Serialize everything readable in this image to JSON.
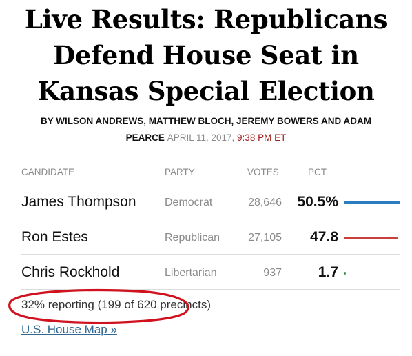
{
  "article": {
    "headline_line1": "Live Results: Republicans",
    "headline_line2": "Defend House Seat in",
    "headline_line3": "Kansas Special Election",
    "byline_authors_line1": "BY WILSON ANDREWS, MATTHEW BLOCH, JEREMY BOWERS AND ADAM",
    "byline_authors_line2": "PEARCE",
    "byline_date": "APRIL 11, 2017,",
    "byline_time": "9:38 PM ET"
  },
  "results_table": {
    "headers": {
      "candidate": "CANDIDATE",
      "party": "PARTY",
      "votes": "VOTES",
      "pct": "PCT."
    },
    "rows": [
      {
        "candidate": "James Thompson",
        "party": "Democrat",
        "votes": "28,646",
        "pct": "50.5%",
        "pct_value": 50.5
      },
      {
        "candidate": "Ron Estes",
        "party": "Republican",
        "votes": "27,105",
        "pct": "47.8",
        "pct_value": 47.8
      },
      {
        "candidate": "Chris Rockhold",
        "party": "Libertarian",
        "votes": "937",
        "pct": "1.7",
        "pct_value": 1.7
      }
    ]
  },
  "colors": {
    "democrat": "#2a7bbf",
    "republican": "#c8413a",
    "libertarian": "#4a9a4a",
    "annotation": "#d0121e",
    "link": "#326891"
  },
  "footer": {
    "reporting": "32% reporting (199 of 620 precincts)",
    "map_link": "U.S. House Map »"
  }
}
